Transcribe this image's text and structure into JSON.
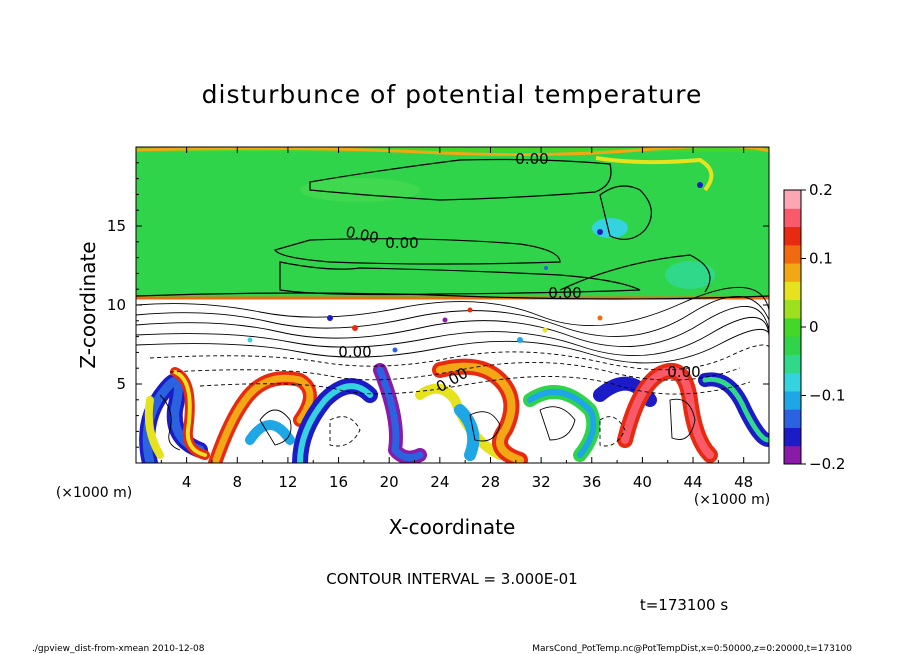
{
  "chart_data": {
    "type": "heatmap",
    "title": "disturbunce of potential temperature",
    "xlabel": "X-coordinate",
    "ylabel": "Z-coordinate",
    "x_unit": "(×1000 m)",
    "z_unit": "(×1000 m)",
    "xlim": [
      0,
      50
    ],
    "ylim": [
      0,
      20
    ],
    "x_ticks": [
      "4",
      "8",
      "12",
      "16",
      "20",
      "24",
      "28",
      "32",
      "36",
      "40",
      "44",
      "48"
    ],
    "y_ticks": [
      "5",
      "10",
      "15"
    ],
    "colorbar": {
      "range": [
        -0.2,
        0.2
      ],
      "tick_labels": [
        "0.2",
        "0.1",
        "0",
        "−0.1",
        "−0.2"
      ],
      "colors": [
        "#8a1aa8",
        "#1b1bc8",
        "#2a62e0",
        "#1ea6e6",
        "#35d3e0",
        "#30d88a",
        "#2fd44a",
        "#45d62a",
        "#9ee01e",
        "#e6e21e",
        "#f2a814",
        "#f06a10",
        "#e82a10",
        "#f85a6a",
        "#fca6b4"
      ]
    },
    "contour_labels": [
      "0.00",
      "0.00",
      "0.00",
      "0.00",
      "0.00",
      "0.00",
      "0.00"
    ],
    "contour_interval": "CONTOUR INTERVAL = 3.000E-01",
    "time": "t=173100 s"
  },
  "footer": {
    "left": "./gpview_dist-from-xmean  2010-12-08",
    "right": "MarsCond_PotTemp.nc@PotTempDist,x=0:50000,z=0:20000,t=173100"
  }
}
